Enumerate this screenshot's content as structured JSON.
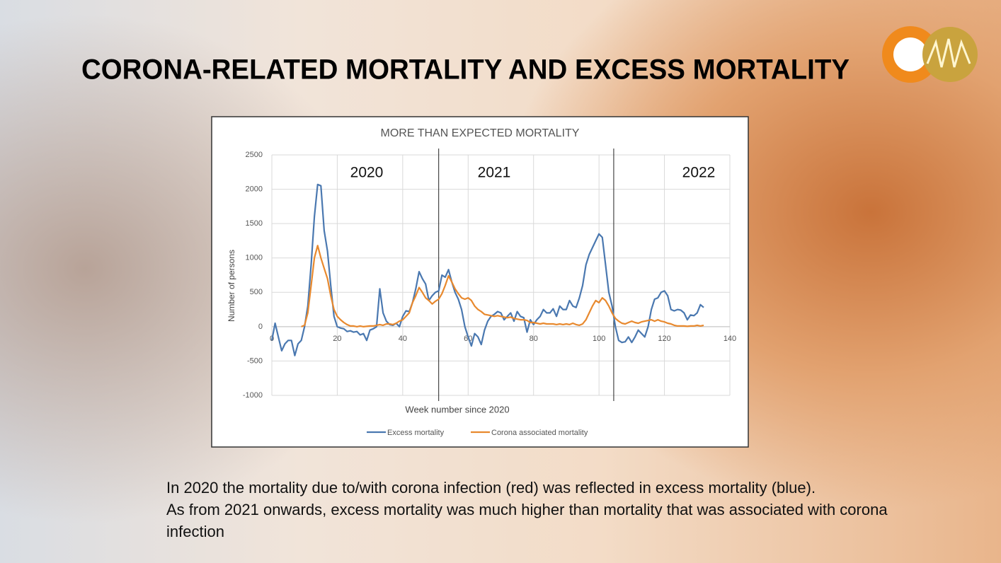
{
  "slide": {
    "title": "CORONA-RELATED MORTALITY AND EXCESS MORTALITY",
    "caption": [
      "In 2020 the mortality due to/with corona infection (red) was reflected in excess mortality (blue).",
      "As from 2021 onwards, excess mortality was much higher than mortality that was associated with corona infection"
    ]
  },
  "chart_data": {
    "type": "line",
    "title": "MORE THAN EXPECTED MORTALITY",
    "x_label": "Week number since 2020",
    "y_label": "Number of persons",
    "annotations": [
      "2020",
      "2021",
      "2022"
    ],
    "year_dividers": [
      51,
      104.5
    ],
    "xlim": [
      0,
      140
    ],
    "xticks": [
      0,
      20,
      40,
      60,
      80,
      100,
      120,
      140
    ],
    "ylim": [
      -1000,
      2500
    ],
    "yticks": [
      -1000,
      -500,
      0,
      500,
      1000,
      1500,
      2000,
      2500
    ],
    "grid": true,
    "legend": "bottom",
    "x": [
      0,
      1,
      2,
      3,
      4,
      5,
      6,
      7,
      8,
      9,
      10,
      11,
      12,
      13,
      14,
      15,
      16,
      17,
      18,
      19,
      20,
      21,
      22,
      23,
      24,
      25,
      26,
      27,
      28,
      29,
      30,
      31,
      32,
      33,
      34,
      35,
      36,
      37,
      38,
      39,
      40,
      41,
      42,
      43,
      44,
      45,
      46,
      47,
      48,
      49,
      50,
      51,
      52,
      53,
      54,
      55,
      56,
      57,
      58,
      59,
      60,
      61,
      62,
      63,
      64,
      65,
      66,
      67,
      68,
      69,
      70,
      71,
      72,
      73,
      74,
      75,
      76,
      77,
      78,
      79,
      80,
      81,
      82,
      83,
      84,
      85,
      86,
      87,
      88,
      89,
      90,
      91,
      92,
      93,
      94,
      95,
      96,
      97,
      98,
      99,
      100,
      101,
      102,
      103,
      104,
      105,
      106,
      107,
      108,
      109,
      110,
      111,
      112,
      113,
      114,
      115,
      116,
      117,
      118,
      119,
      120,
      121,
      122,
      123,
      124,
      125,
      126,
      127,
      128,
      129,
      130,
      131,
      132
    ],
    "series": [
      {
        "name": "Excess mortality",
        "color": "#4a78b0",
        "values": [
          -200,
          50,
          -150,
          -350,
          -250,
          -200,
          -200,
          -420,
          -250,
          -200,
          0,
          300,
          900,
          1600,
          2070,
          2050,
          1400,
          1100,
          600,
          150,
          0,
          -20,
          -30,
          -70,
          -60,
          -80,
          -70,
          -120,
          -100,
          -200,
          -50,
          -30,
          0,
          550,
          200,
          80,
          30,
          20,
          50,
          0,
          150,
          230,
          220,
          350,
          550,
          800,
          700,
          620,
          380,
          450,
          500,
          520,
          750,
          720,
          830,
          650,
          500,
          400,
          250,
          0,
          -150,
          -280,
          -100,
          -150,
          -260,
          -50,
          80,
          150,
          180,
          220,
          200,
          100,
          150,
          200,
          80,
          220,
          150,
          130,
          -80,
          100,
          30,
          100,
          150,
          250,
          200,
          200,
          260,
          150,
          300,
          250,
          250,
          380,
          300,
          280,
          420,
          600,
          900,
          1050,
          1150,
          1250,
          1350,
          1300,
          900,
          500,
          300,
          0,
          -200,
          -230,
          -220,
          -150,
          -230,
          -150,
          -50,
          -100,
          -150,
          0,
          250,
          400,
          420,
          500,
          520,
          450,
          250,
          230,
          250,
          240,
          200,
          100,
          170,
          160,
          200,
          320,
          280
        ]
      },
      {
        "name": "Corona associated mortality",
        "color": "#e8892e",
        "values": [
          null,
          null,
          null,
          null,
          null,
          null,
          null,
          null,
          null,
          0,
          20,
          200,
          600,
          1000,
          1180,
          1000,
          850,
          700,
          450,
          250,
          150,
          100,
          60,
          30,
          10,
          10,
          0,
          10,
          0,
          5,
          10,
          10,
          20,
          30,
          20,
          40,
          40,
          30,
          50,
          80,
          100,
          150,
          200,
          350,
          450,
          570,
          500,
          420,
          380,
          330,
          370,
          400,
          480,
          600,
          740,
          650,
          550,
          480,
          420,
          400,
          420,
          380,
          300,
          250,
          220,
          180,
          170,
          160,
          150,
          160,
          150,
          140,
          130,
          140,
          120,
          110,
          100,
          100,
          90,
          60,
          60,
          50,
          40,
          50,
          40,
          40,
          40,
          30,
          40,
          30,
          40,
          30,
          50,
          30,
          20,
          40,
          100,
          200,
          300,
          380,
          350,
          420,
          380,
          300,
          200,
          120,
          80,
          50,
          40,
          60,
          80,
          60,
          50,
          70,
          80,
          90,
          100,
          80,
          100,
          80,
          70,
          50,
          40,
          20,
          10,
          10,
          10,
          5,
          10,
          10,
          20,
          10,
          20
        ]
      }
    ]
  }
}
